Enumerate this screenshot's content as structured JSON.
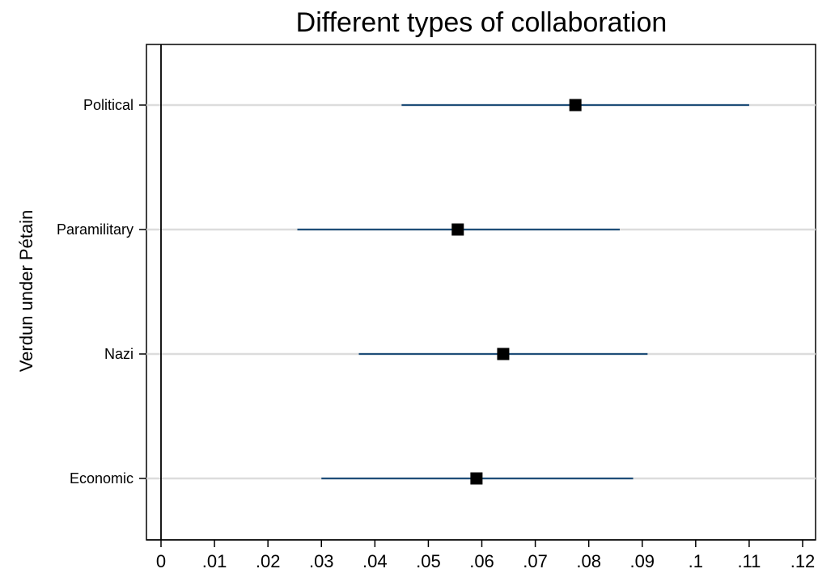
{
  "chart_data": {
    "type": "scatter",
    "subtype": "coefficient plot with confidence intervals",
    "title": "Different types of collaboration",
    "xlabel": "",
    "ylabel": "Verdun under Pétain",
    "xlim": [
      0,
      0.12
    ],
    "x_ticks": [
      {
        "value": 0,
        "label": "0"
      },
      {
        "value": 0.01,
        "label": ".01"
      },
      {
        "value": 0.02,
        "label": ".02"
      },
      {
        "value": 0.03,
        "label": ".03"
      },
      {
        "value": 0.04,
        "label": ".04"
      },
      {
        "value": 0.05,
        "label": ".05"
      },
      {
        "value": 0.06,
        "label": ".06"
      },
      {
        "value": 0.07,
        "label": ".07"
      },
      {
        "value": 0.08,
        "label": ".08"
      },
      {
        "value": 0.09,
        "label": ".09"
      },
      {
        "value": 0.1,
        "label": ".1"
      },
      {
        "value": 0.11,
        "label": ".11"
      },
      {
        "value": 0.12,
        "label": ".12"
      }
    ],
    "categories": [
      "Political",
      "Paramilitary",
      "Nazi",
      "Economic"
    ],
    "estimates": [
      0.0775,
      0.0555,
      0.064,
      0.059
    ],
    "ci_low": [
      0.045,
      0.0255,
      0.037,
      0.03
    ],
    "ci_high": [
      0.11,
      0.0858,
      0.091,
      0.0883
    ],
    "reference_line_x": 0,
    "grid": "horizontal lines at each category",
    "colors": {
      "ci_line": "#1f4e79",
      "marker": "#000000",
      "grid": "#dcdcdc",
      "axis": "#000000"
    }
  }
}
